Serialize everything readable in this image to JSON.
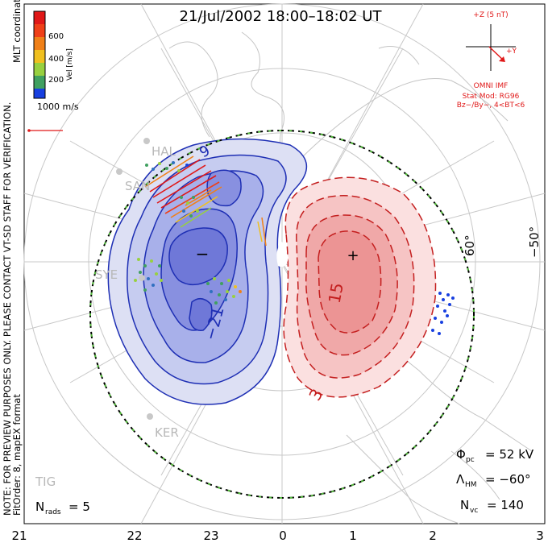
{
  "title": "21/Jul/2002 18:00–18:02 UT",
  "note_lines": [
    "NOTE: FOR PREVIEW PURPOSES ONLY. PLEASE CONTACT VT-SD STAFF FOR VERIFICATION.",
    "FitOrder: 8, mapEX format"
  ],
  "coord_label": "MLT coordinates",
  "colorbar": {
    "label": "Vel [m/s]",
    "ticks": [
      "600",
      "400",
      "200"
    ],
    "colors": [
      "#e01818",
      "#f08018",
      "#f0c020",
      "#98d040",
      "#40a060",
      "#3070c0",
      "#1840e0"
    ]
  },
  "vector_scale": "1000 m/s",
  "imf": {
    "z_label": "+Z (5 nT)",
    "y_label": "+Y",
    "source": "OMNI IMF",
    "model_1": "Stat Mod: RG96",
    "model_2": "Bz−/By−, 4<BT<6"
  },
  "stations": [
    "HAL",
    "SAN",
    "SYE",
    "KER",
    "TIG"
  ],
  "lat_labels": [
    "60°",
    "−50°"
  ],
  "contour_labels": [
    "9",
    "−21",
    "15",
    "3"
  ],
  "pole_markers": {
    "min": "−",
    "max": "+"
  },
  "stats": {
    "phi_sym": "Φ",
    "phi_sub": "pc",
    "phi_val": "= 52 kV",
    "lam_sym": "Λ",
    "lam_sub": "HM",
    "lam_val": "= −60°",
    "nvc_sym": "N",
    "nvc_sub": "vc",
    "nvc_val": "= 140",
    "nrads_sym": "N",
    "nrads_sub": "rads",
    "nrads_val": "= 5"
  },
  "x_ticks": [
    "21",
    "22",
    "23",
    "0",
    "1",
    "2",
    "3"
  ],
  "colors": {
    "neg": "#1e2fb4",
    "pos": "#c41f1f",
    "neg_fill": "#5a66d8",
    "pos_fill": "#e56b6b",
    "hmb": "#58c040"
  }
}
